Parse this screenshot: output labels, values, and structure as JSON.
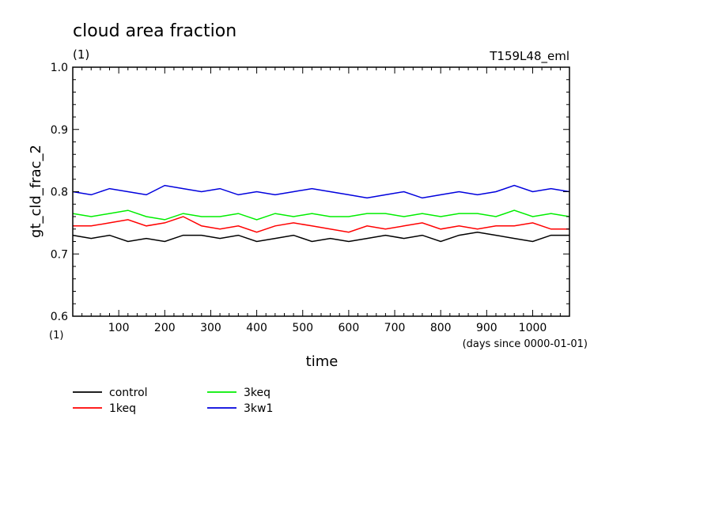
{
  "chart_data": {
    "type": "line",
    "title": "cloud area fraction",
    "title_unit": "(1)",
    "experiment": "T159L48_eml",
    "xlabel": "time",
    "xunits": "(days since 0000-01-01)",
    "ylabel": "gt_cld_frac_2",
    "yunit": "(1)",
    "xlim": [
      0,
      1080
    ],
    "ylim": [
      0.6,
      1.0
    ],
    "xticks": [
      100,
      200,
      300,
      400,
      500,
      600,
      700,
      800,
      900,
      1000
    ],
    "yticks": [
      "0.6",
      "0.7",
      "0.8",
      "0.9",
      "1.0"
    ],
    "grid": false,
    "legend_position": "bottom-left",
    "series": [
      {
        "name": "control",
        "color": "#000000",
        "x": [
          0,
          40,
          80,
          120,
          160,
          200,
          240,
          280,
          320,
          360,
          400,
          440,
          480,
          520,
          560,
          600,
          640,
          680,
          720,
          760,
          800,
          840,
          880,
          920,
          960,
          1000,
          1040,
          1080
        ],
        "y": [
          0.73,
          0.725,
          0.73,
          0.72,
          0.725,
          0.72,
          0.73,
          0.73,
          0.725,
          0.73,
          0.72,
          0.725,
          0.73,
          0.72,
          0.725,
          0.72,
          0.725,
          0.73,
          0.725,
          0.73,
          0.72,
          0.73,
          0.735,
          0.73,
          0.725,
          0.72,
          0.73,
          0.73
        ]
      },
      {
        "name": "1keq",
        "color": "#ff0000",
        "x": [
          0,
          40,
          80,
          120,
          160,
          200,
          240,
          280,
          320,
          360,
          400,
          440,
          480,
          520,
          560,
          600,
          640,
          680,
          720,
          760,
          800,
          840,
          880,
          920,
          960,
          1000,
          1040,
          1080
        ],
        "y": [
          0.745,
          0.745,
          0.75,
          0.755,
          0.745,
          0.75,
          0.76,
          0.745,
          0.74,
          0.745,
          0.735,
          0.745,
          0.75,
          0.745,
          0.74,
          0.735,
          0.745,
          0.74,
          0.745,
          0.75,
          0.74,
          0.745,
          0.74,
          0.745,
          0.745,
          0.75,
          0.74,
          0.74
        ]
      },
      {
        "name": "3keq",
        "color": "#00ee00",
        "x": [
          0,
          40,
          80,
          120,
          160,
          200,
          240,
          280,
          320,
          360,
          400,
          440,
          480,
          520,
          560,
          600,
          640,
          680,
          720,
          760,
          800,
          840,
          880,
          920,
          960,
          1000,
          1040,
          1080
        ],
        "y": [
          0.765,
          0.76,
          0.765,
          0.77,
          0.76,
          0.755,
          0.765,
          0.76,
          0.76,
          0.765,
          0.755,
          0.765,
          0.76,
          0.765,
          0.76,
          0.76,
          0.765,
          0.765,
          0.76,
          0.765,
          0.76,
          0.765,
          0.765,
          0.76,
          0.77,
          0.76,
          0.765,
          0.76
        ]
      },
      {
        "name": "3kw1",
        "color": "#0000dd",
        "x": [
          0,
          40,
          80,
          120,
          160,
          200,
          240,
          280,
          320,
          360,
          400,
          440,
          480,
          520,
          560,
          600,
          640,
          680,
          720,
          760,
          800,
          840,
          880,
          920,
          960,
          1000,
          1040,
          1080
        ],
        "y": [
          0.8,
          0.795,
          0.805,
          0.8,
          0.795,
          0.81,
          0.805,
          0.8,
          0.805,
          0.795,
          0.8,
          0.795,
          0.8,
          0.805,
          0.8,
          0.795,
          0.79,
          0.795,
          0.8,
          0.79,
          0.795,
          0.8,
          0.795,
          0.8,
          0.81,
          0.8,
          0.805,
          0.8
        ]
      }
    ]
  }
}
